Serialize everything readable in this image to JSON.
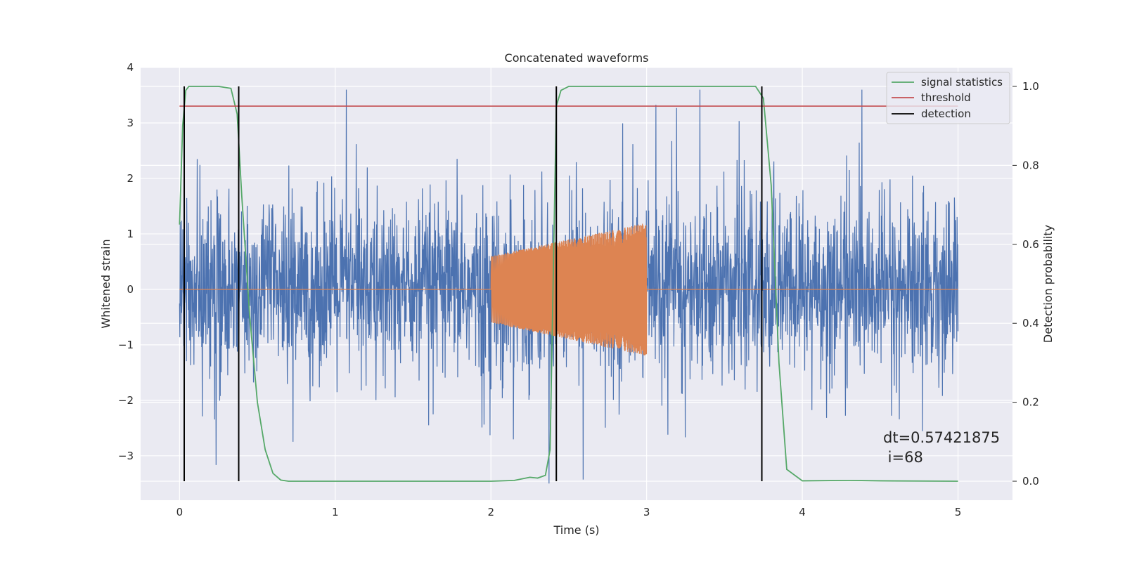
{
  "chart_data": {
    "type": "line",
    "title": "Concatenated waveforms",
    "xlabel": "Time (s)",
    "ylabel": "Whitened strain",
    "y2label": "Detection probability",
    "xlim": [
      -0.25,
      5.35
    ],
    "ylim": [
      -3.8,
      4.0
    ],
    "y2lim": [
      -0.048,
      1.048
    ],
    "x_ticks": [
      0,
      1,
      2,
      3,
      4,
      5
    ],
    "y_ticks": [
      -3,
      -2,
      -1,
      0,
      1,
      2,
      3,
      4
    ],
    "y2_ticks": [
      0.0,
      0.2,
      0.4,
      0.6,
      0.8,
      1.0
    ],
    "grid": true,
    "legend_position": "top-right",
    "annotation": "dt=0.57421875\n i=68",
    "series": [
      {
        "role": "noise",
        "color": "#4c72b0",
        "axis": "left",
        "x_range": [
          0,
          5
        ],
        "amplitude_range": [
          -3.5,
          3.6
        ]
      },
      {
        "role": "waveform",
        "color": "#dd8452",
        "axis": "left",
        "x_range": [
          0,
          5
        ],
        "burst_range": [
          2.0,
          3.0
        ],
        "burst_amplitude_start": 0.6,
        "burst_amplitude_end": 1.2
      },
      {
        "name": "signal statistics",
        "color": "#55a868",
        "axis": "right",
        "x": [
          0.0,
          0.02,
          0.04,
          0.06,
          0.1,
          0.15,
          0.25,
          0.33,
          0.37,
          0.4,
          0.45,
          0.5,
          0.55,
          0.6,
          0.65,
          0.7,
          1.0,
          1.5,
          2.0,
          2.15,
          2.25,
          2.3,
          2.35,
          2.38,
          2.42,
          2.45,
          2.5,
          2.6,
          3.0,
          3.5,
          3.7,
          3.75,
          3.8,
          3.85,
          3.9,
          4.0,
          4.3,
          4.5,
          5.0
        ],
        "values": [
          0.65,
          0.9,
          0.99,
          1.0,
          1.0,
          1.0,
          1.0,
          0.995,
          0.93,
          0.72,
          0.42,
          0.2,
          0.08,
          0.02,
          0.003,
          0.0,
          0.0,
          0.0,
          0.0,
          0.002,
          0.01,
          0.008,
          0.015,
          0.08,
          0.95,
          0.99,
          1.0,
          1.0,
          1.0,
          1.0,
          1.0,
          0.97,
          0.75,
          0.3,
          0.03,
          0.001,
          0.002,
          0.001,
          0.0
        ]
      },
      {
        "name": "threshold",
        "color": "#c44e52",
        "axis": "right",
        "x": [
          0,
          5
        ],
        "values": [
          0.95,
          0.95
        ]
      },
      {
        "name": "detection",
        "color": "#000000",
        "axis": "right",
        "vertical_lines_x": [
          0.03,
          0.38,
          2.42,
          3.74
        ],
        "span": [
          0.0,
          1.0
        ]
      }
    ]
  }
}
